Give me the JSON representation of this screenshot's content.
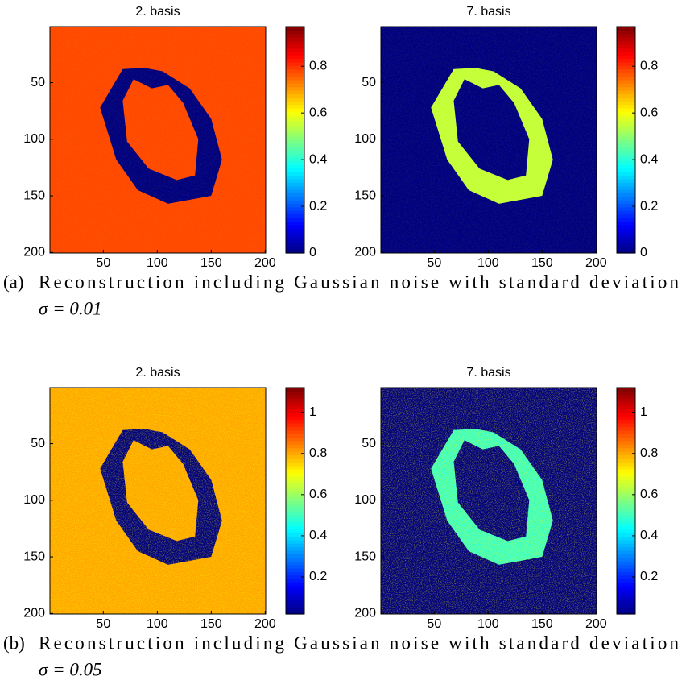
{
  "chart_data": [
    {
      "type": "image",
      "title": "2. basis",
      "xlim": [
        0.5,
        200.5
      ],
      "ylim": [
        0.5,
        200.5
      ],
      "y_reversed": true,
      "xticks": [
        50,
        100,
        150,
        200
      ],
      "yticks": [
        50,
        100,
        150,
        200
      ],
      "background_value": 0.78,
      "region_value": 0,
      "noise": 0.01,
      "colorbar": {
        "clim": [
          0,
          0.97
        ],
        "ticks": [
          0,
          0.2,
          0.4,
          0.6,
          0.8
        ]
      }
    },
    {
      "type": "image",
      "title": "7. basis",
      "xlim": [
        0.5,
        200.5
      ],
      "ylim": [
        0.5,
        200.5
      ],
      "y_reversed": true,
      "xticks": [
        50,
        100,
        150,
        200
      ],
      "yticks": [
        50,
        100,
        150,
        200
      ],
      "background_value": 0,
      "region_value": 0.55,
      "noise": 0.01,
      "colorbar": {
        "clim": [
          0,
          0.97
        ],
        "ticks": [
          0,
          0.2,
          0.4,
          0.6,
          0.8
        ]
      }
    },
    {
      "type": "image",
      "title": "2. basis",
      "xlim": [
        0.5,
        200.5
      ],
      "ylim": [
        0.5,
        200.5
      ],
      "y_reversed": true,
      "xticks": [
        50,
        100,
        150,
        200
      ],
      "yticks": [
        50,
        100,
        150,
        200
      ],
      "background_value": 0.8,
      "region_value": 0.02,
      "noise": 0.05,
      "colorbar": {
        "clim": [
          0.02,
          1.12
        ],
        "ticks": [
          0.2,
          0.4,
          0.6,
          0.8,
          1
        ]
      }
    },
    {
      "type": "image",
      "title": "7. basis",
      "xlim": [
        0.5,
        200.5
      ],
      "ylim": [
        0.5,
        200.5
      ],
      "y_reversed": true,
      "xticks": [
        50,
        100,
        150,
        200
      ],
      "yticks": [
        50,
        100,
        150,
        200
      ],
      "background_value": 0.02,
      "region_value": 0.5,
      "noise": 0.05,
      "colorbar": {
        "clim": [
          0.02,
          1.12
        ],
        "ticks": [
          0.2,
          0.4,
          0.6,
          0.8,
          1
        ]
      }
    }
  ],
  "captions": [
    {
      "label": "(a)",
      "text": "Reconstruction including Gaussian noise with standard deviation",
      "math": "σ = 0.01"
    },
    {
      "label": "(b)",
      "text": "Reconstruction including Gaussian noise with standard deviation",
      "math": "σ = 0.05"
    }
  ]
}
